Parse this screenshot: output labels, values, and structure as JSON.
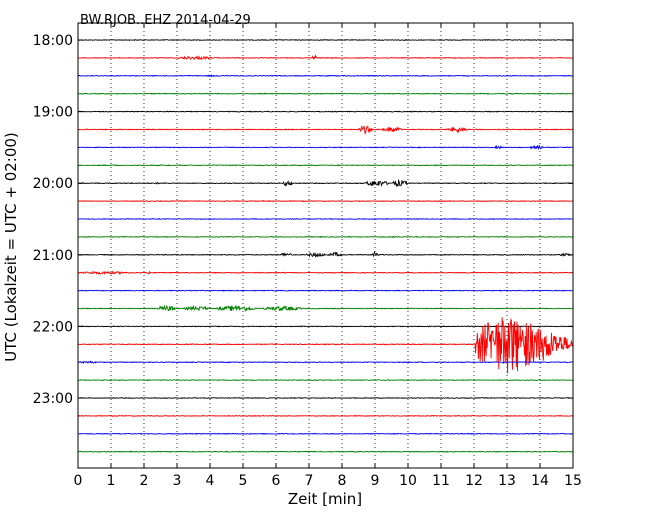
{
  "chart_data": {
    "type": "line",
    "title": "BW.RJOB..EHZ 2014-04-29",
    "xlabel": "Zeit  [min]",
    "ylabel": "UTC (Lokalzeit = UTC + 02:00)",
    "xlim": [
      0,
      15
    ],
    "x_ticks": [
      "0",
      "1",
      "2",
      "3",
      "4",
      "5",
      "6",
      "7",
      "8",
      "9",
      "10",
      "11",
      "12",
      "13",
      "14",
      "15"
    ],
    "y_tick_labels": [
      "18:00",
      "19:00",
      "20:00",
      "21:00",
      "22:00",
      "23:00"
    ],
    "grid": "dotted vertical at each minute",
    "line_colors": [
      "#000000",
      "#ff0000",
      "#0000ff",
      "#008000"
    ],
    "traces": [
      {
        "start": "18:00",
        "color": "#000000",
        "events": []
      },
      {
        "start": "18:15",
        "color": "#ff0000",
        "events": [
          {
            "from": 3.0,
            "to": 4.1,
            "amp": 0.18
          },
          {
            "from": 7.1,
            "to": 7.25,
            "amp": 0.35
          }
        ]
      },
      {
        "start": "18:30",
        "color": "#0000ff",
        "events": [
          {
            "from": 3.8,
            "to": 4.2,
            "amp": 0.08
          }
        ]
      },
      {
        "start": "18:45",
        "color": "#008000",
        "events": []
      },
      {
        "start": "19:00",
        "color": "#000000",
        "events": []
      },
      {
        "start": "19:15",
        "color": "#ff0000",
        "events": [
          {
            "from": 8.5,
            "to": 8.9,
            "amp": 0.45
          },
          {
            "from": 9.2,
            "to": 9.8,
            "amp": 0.3
          },
          {
            "from": 11.2,
            "to": 11.8,
            "amp": 0.3
          }
        ]
      },
      {
        "start": "19:30",
        "color": "#0000ff",
        "events": [
          {
            "from": 12.6,
            "to": 12.9,
            "amp": 0.15
          },
          {
            "from": 13.7,
            "to": 14.1,
            "amp": 0.2
          }
        ]
      },
      {
        "start": "19:45",
        "color": "#008000",
        "events": [
          {
            "from": 10.7,
            "to": 10.9,
            "amp": 0.06
          }
        ]
      },
      {
        "start": "20:00",
        "color": "#000000",
        "events": [
          {
            "from": 2.3,
            "to": 2.5,
            "amp": 0.08
          },
          {
            "from": 6.2,
            "to": 6.5,
            "amp": 0.3
          },
          {
            "from": 8.7,
            "to": 9.4,
            "amp": 0.35
          },
          {
            "from": 9.5,
            "to": 10.0,
            "amp": 0.35
          }
        ]
      },
      {
        "start": "20:15",
        "color": "#ff0000",
        "events": []
      },
      {
        "start": "20:30",
        "color": "#0000ff",
        "events": []
      },
      {
        "start": "20:45",
        "color": "#008000",
        "events": [
          {
            "from": 9.5,
            "to": 9.7,
            "amp": 0.1
          }
        ]
      },
      {
        "start": "21:00",
        "color": "#000000",
        "events": [
          {
            "from": 6.1,
            "to": 6.5,
            "amp": 0.2
          },
          {
            "from": 6.9,
            "to": 7.5,
            "amp": 0.25
          },
          {
            "from": 7.6,
            "to": 8.0,
            "amp": 0.25
          },
          {
            "from": 8.9,
            "to": 9.1,
            "amp": 0.3
          },
          {
            "from": 14.6,
            "to": 14.95,
            "amp": 0.15
          }
        ]
      },
      {
        "start": "21:15",
        "color": "#ff0000",
        "events": [
          {
            "from": 0.0,
            "to": 1.6,
            "amp": 0.15
          },
          {
            "from": 2.1,
            "to": 2.2,
            "amp": 0.2
          }
        ]
      },
      {
        "start": "21:30",
        "color": "#0000ff",
        "events": []
      },
      {
        "start": "21:45",
        "color": "#008000",
        "events": [
          {
            "from": 2.4,
            "to": 3.0,
            "amp": 0.3
          },
          {
            "from": 3.2,
            "to": 4.0,
            "amp": 0.25
          },
          {
            "from": 4.2,
            "to": 5.4,
            "amp": 0.3
          },
          {
            "from": 5.6,
            "to": 6.8,
            "amp": 0.25
          }
        ]
      },
      {
        "start": "22:00",
        "color": "#000000",
        "events": []
      },
      {
        "start": "22:15",
        "color": "#ff0000",
        "events": [
          {
            "from": 12.05,
            "to": 15.0,
            "amp": 3.5
          }
        ]
      },
      {
        "start": "22:30",
        "color": "#0000ff",
        "events": [
          {
            "from": 0.0,
            "to": 0.6,
            "amp": 0.12
          }
        ]
      },
      {
        "start": "22:45",
        "color": "#008000",
        "events": []
      },
      {
        "start": "23:00",
        "color": "#000000",
        "events": []
      },
      {
        "start": "23:15",
        "color": "#ff0000",
        "events": []
      },
      {
        "start": "23:30",
        "color": "#0000ff",
        "events": []
      },
      {
        "start": "23:45",
        "color": "#008000",
        "events": []
      }
    ]
  }
}
